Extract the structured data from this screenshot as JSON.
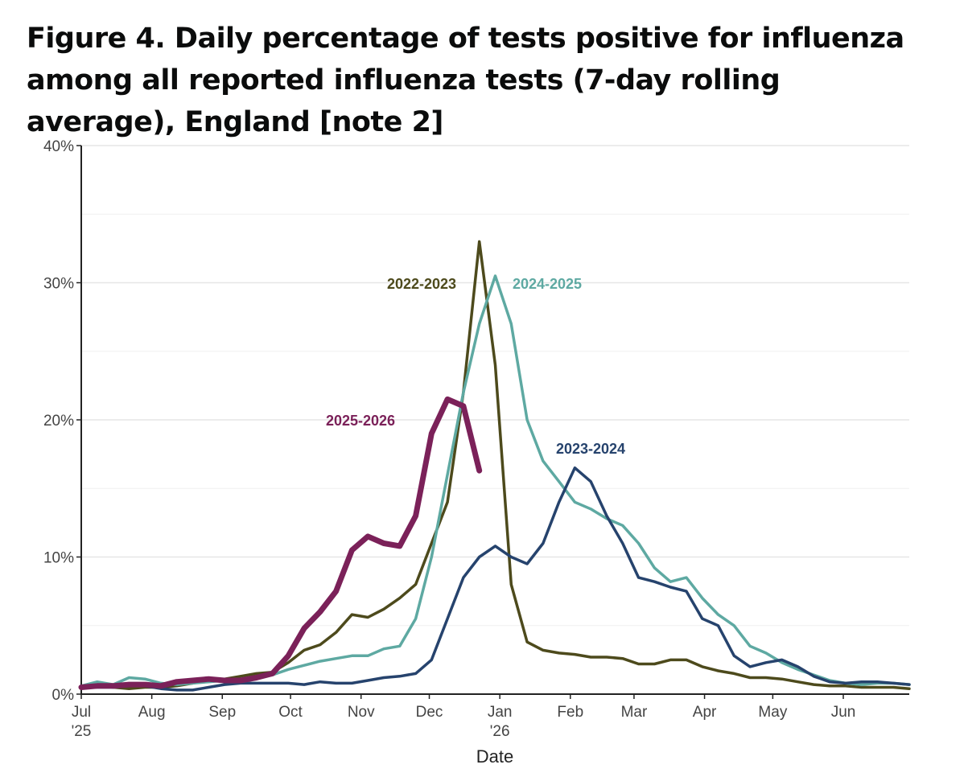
{
  "chart_data": {
    "type": "line",
    "title": "Figure 4. Daily percentage of tests positive for influenza among all reported influenza tests (7-day rolling average), England [note 2]",
    "x_label": "Date",
    "x": [
      0,
      7,
      14,
      21,
      28,
      35,
      42,
      49,
      56,
      63,
      70,
      77,
      84,
      91,
      98,
      105,
      112,
      119,
      126,
      133,
      140,
      147,
      154,
      161,
      168,
      175,
      182,
      189,
      196,
      203,
      210,
      217,
      224,
      231,
      238,
      245,
      252,
      259,
      266,
      273,
      280,
      287,
      294,
      301,
      308,
      315,
      322,
      329,
      336,
      343,
      350,
      357,
      364
    ],
    "xlim": [
      0,
      364
    ],
    "xticks": [
      {
        "value": 0,
        "label": "Jul\n'25"
      },
      {
        "value": 31,
        "label": "Aug"
      },
      {
        "value": 62,
        "label": "Sep"
      },
      {
        "value": 92,
        "label": "Oct"
      },
      {
        "value": 123,
        "label": "Nov"
      },
      {
        "value": 153,
        "label": "Dec"
      },
      {
        "value": 184,
        "label": "Jan\n'26"
      },
      {
        "value": 215,
        "label": "Feb"
      },
      {
        "value": 243,
        "label": "Mar"
      },
      {
        "value": 274,
        "label": "Apr"
      },
      {
        "value": 304,
        "label": "May"
      },
      {
        "value": 335,
        "label": "Jun"
      }
    ],
    "ylim": [
      0,
      40
    ],
    "yticks": [
      {
        "value": 0,
        "label": "0%"
      },
      {
        "value": 10,
        "label": "10%"
      },
      {
        "value": 20,
        "label": "20%"
      },
      {
        "value": 30,
        "label": "30%"
      },
      {
        "value": 40,
        "label": "40%"
      }
    ],
    "yminor": [
      5,
      15,
      25,
      35
    ],
    "grid": true,
    "series": [
      {
        "name": "2022-2023",
        "color": "#4d4a1c",
        "width": 3.5,
        "values": [
          0.5,
          0.6,
          0.5,
          0.4,
          0.5,
          0.5,
          0.6,
          0.8,
          1.0,
          1.1,
          1.3,
          1.5,
          1.6,
          2.3,
          3.2,
          3.6,
          4.5,
          5.8,
          5.6,
          6.2,
          7.0,
          8.0,
          11,
          14,
          22,
          33,
          24,
          8,
          3.8,
          3.2,
          3.0,
          2.9,
          2.7,
          2.7,
          2.6,
          2.2,
          2.2,
          2.5,
          2.5,
          2.0,
          1.7,
          1.5,
          1.2,
          1.2,
          1.1,
          0.9,
          0.7,
          0.6,
          0.6,
          0.5,
          0.5,
          0.5,
          0.4
        ]
      },
      {
        "name": "2024-2025",
        "color": "#5ea9a2",
        "width": 3.5,
        "values": [
          0.6,
          0.9,
          0.7,
          1.2,
          1.1,
          0.8,
          0.7,
          0.8,
          0.9,
          1.0,
          1.1,
          1.2,
          1.4,
          1.8,
          2.1,
          2.4,
          2.6,
          2.8,
          2.8,
          3.3,
          3.5,
          5.5,
          10,
          16,
          22,
          27,
          30.5,
          27,
          20,
          17,
          15.5,
          14,
          13.5,
          12.8,
          12.3,
          11,
          9.2,
          8.2,
          8.5,
          7.0,
          5.8,
          5.0,
          3.5,
          3.0,
          2.3,
          1.8,
          1.4,
          1.0,
          0.8,
          0.7,
          0.8,
          0.8,
          0.7
        ]
      },
      {
        "name": "2023-2024",
        "color": "#26436d",
        "width": 3.5,
        "values": [
          0.5,
          0.5,
          0.5,
          0.6,
          0.6,
          0.4,
          0.3,
          0.3,
          0.5,
          0.7,
          0.8,
          0.8,
          0.8,
          0.8,
          0.7,
          0.9,
          0.8,
          0.8,
          1.0,
          1.2,
          1.3,
          1.5,
          2.5,
          5.5,
          8.5,
          10,
          10.8,
          10,
          9.5,
          11,
          14,
          16.5,
          15.5,
          13,
          11,
          8.5,
          8.2,
          7.8,
          7.5,
          5.5,
          5.0,
          2.8,
          2.0,
          2.3,
          2.5,
          2.0,
          1.3,
          0.9,
          0.8,
          0.9,
          0.9,
          0.8,
          0.7
        ]
      },
      {
        "name": "2025-2026",
        "color": "#7b2159",
        "width": 7,
        "values": [
          0.5,
          0.6,
          0.6,
          0.7,
          0.7,
          0.6,
          0.9,
          1.0,
          1.1,
          1.0,
          1.0,
          1.2,
          1.5,
          2.8,
          4.8,
          6.0,
          7.5,
          10.5,
          11.5,
          11.0,
          10.8,
          13,
          19,
          21.5,
          21,
          16.3,
          null,
          null,
          null,
          null,
          null,
          null,
          null,
          null,
          null,
          null,
          null,
          null,
          null,
          null,
          null,
          null,
          null,
          null,
          null,
          null,
          null,
          null,
          null,
          null,
          null,
          null,
          null
        ]
      }
    ]
  }
}
